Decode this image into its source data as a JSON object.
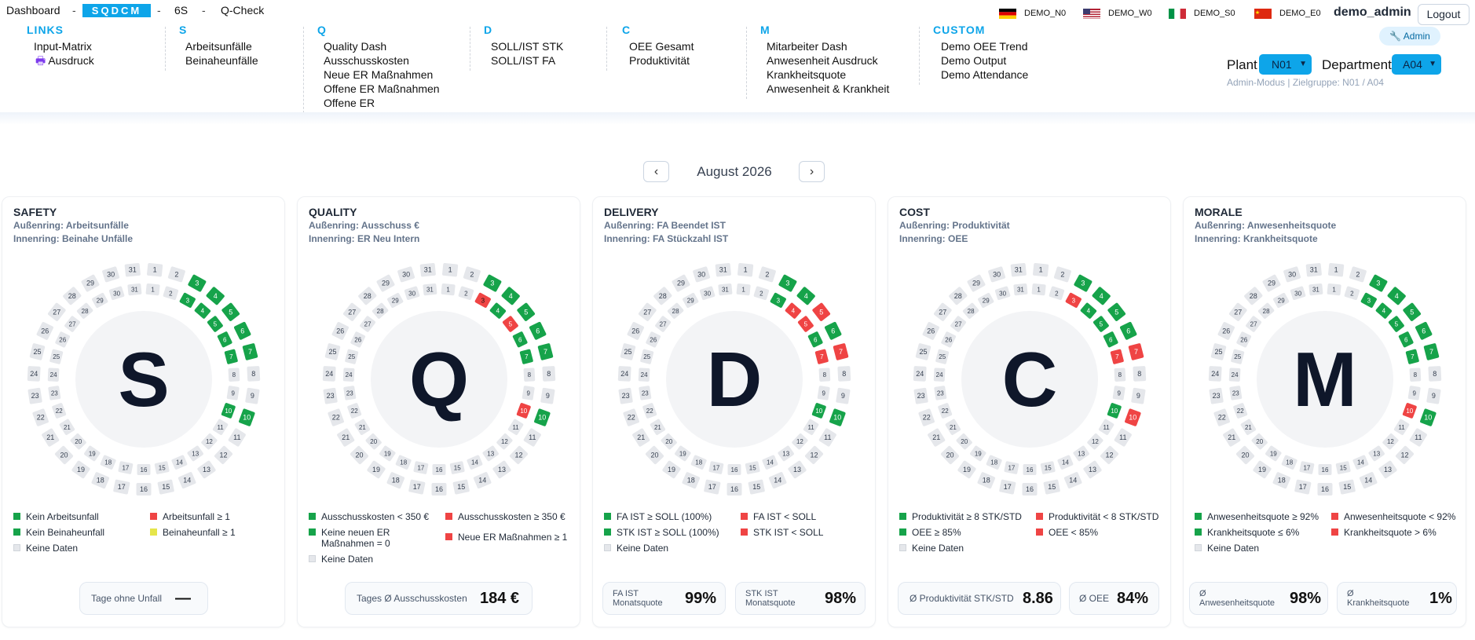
{
  "topnav": {
    "dashboard": "Dashboard",
    "sep1": "-",
    "sqdcm": "SQDCM",
    "sep2": "-",
    "six_s": "6S",
    "sep3": "-",
    "qcheck": "Q-Check"
  },
  "flags": [
    {
      "label": "DEMO_N0",
      "border": "#cbd5e1"
    },
    {
      "label": "DEMO_W0",
      "border": "#1e40af"
    },
    {
      "label": "DEMO_S0",
      "border": "#16a34a"
    },
    {
      "label": "DEMO_E0",
      "border": "#dc2626"
    }
  ],
  "user": "demo_admin",
  "logout": "Logout",
  "admin_pill": "Admin",
  "menu": [
    {
      "head": "LINKS",
      "items": [
        "Input-Matrix",
        "Ausdruck"
      ]
    },
    {
      "head": "S",
      "items": [
        "Arbeitsunfälle",
        "Beinaheunfälle"
      ]
    },
    {
      "head": "Q",
      "items": [
        "Quality Dash",
        "Ausschusskosten",
        "Neue ER Maßnahmen",
        "Offene ER Maßnahmen",
        "Offene ER"
      ]
    },
    {
      "head": "D",
      "items": [
        "SOLL/IST STK",
        "SOLL/IST FA"
      ]
    },
    {
      "head": "C",
      "items": [
        "OEE Gesamt",
        "Produktivität"
      ]
    },
    {
      "head": "M",
      "items": [
        "Mitarbeiter Dash",
        "Anwesenheit Ausdruck",
        "Krankheitsquote",
        "Anwesenheit & Krankheit"
      ]
    },
    {
      "head": "CUSTOM",
      "items": [
        "Demo OEE Trend",
        "Demo Output",
        "Demo Attendance"
      ]
    }
  ],
  "filters": {
    "plant_label": "Plant",
    "plant_value": "N01",
    "dept_label": "Department",
    "dept_value": "A04",
    "admin_mode": "Admin-Modus | Zielgruppe: N01 / A04"
  },
  "month_nav": {
    "prev": "‹",
    "month": "August 2026",
    "next": "›"
  },
  "colors": {
    "green": "#16a34a",
    "red": "#ef4444",
    "yellow": "#e5e54a",
    "grey": "#e5e7eb",
    "accent": "#0ea5e9"
  },
  "cards": [
    {
      "title": "SAFETY",
      "outer": "Außenring: Arbeitsunfälle",
      "inner": "Innenring: Beinahe Unfälle",
      "letter": "S",
      "outer_green": [
        3,
        4,
        5,
        6,
        7,
        10
      ],
      "outer_red": [],
      "inner_green": [
        3,
        4,
        5,
        6,
        7,
        10
      ],
      "inner_red": [],
      "legend": [
        {
          "t": "Kein Arbeitsunfall",
          "c": "green"
        },
        {
          "t": "Arbeitsunfall ≥ 1",
          "c": "red"
        },
        {
          "t": "Kein Beinaheunfall",
          "c": "green"
        },
        {
          "t": "Beinaheunfall ≥ 1",
          "c": "yellow"
        },
        {
          "t": "Keine Daten",
          "c": "grey"
        }
      ],
      "stats": [
        {
          "label": "Tage ohne Unfall",
          "value": "—"
        }
      ]
    },
    {
      "title": "QUALITY",
      "outer": "Außenring: Ausschuss €",
      "inner": "Innenring: ER Neu Intern",
      "letter": "Q",
      "outer_green": [
        3,
        4,
        5,
        6,
        7,
        10
      ],
      "outer_red": [],
      "inner_green": [
        4,
        6,
        7
      ],
      "inner_red": [
        3,
        5,
        10
      ],
      "legend": [
        {
          "t": "Ausschusskosten < 350 €",
          "c": "green"
        },
        {
          "t": "Ausschusskosten ≥ 350 €",
          "c": "red"
        },
        {
          "t": "Keine neuen ER Maßnahmen = 0",
          "c": "green"
        },
        {
          "t": "Neue ER Maßnahmen ≥ 1",
          "c": "red"
        },
        {
          "t": "Keine Daten",
          "c": "grey"
        }
      ],
      "stats": [
        {
          "label": "Tages Ø Ausschusskosten",
          "value": "184 €"
        }
      ]
    },
    {
      "title": "DELIVERY",
      "outer": "Außenring: FA Beendet IST",
      "inner": "Innenring: FA Stückzahl IST",
      "letter": "D",
      "outer_green": [
        3,
        4,
        6,
        10
      ],
      "outer_red": [
        5,
        7
      ],
      "inner_green": [
        3,
        6,
        10
      ],
      "inner_red": [
        4,
        5,
        7
      ],
      "legend": [
        {
          "t": "FA IST ≥ SOLL (100%)",
          "c": "green"
        },
        {
          "t": "FA IST < SOLL",
          "c": "red"
        },
        {
          "t": "STK IST ≥ SOLL (100%)",
          "c": "green"
        },
        {
          "t": "STK IST < SOLL",
          "c": "red"
        },
        {
          "t": "Keine Daten",
          "c": "grey"
        }
      ],
      "stats": [
        {
          "label": "FA IST",
          "label2": "Monatsquote",
          "value": "99%"
        },
        {
          "label": "STK IST",
          "label2": "Monatsquote",
          "value": "98%"
        }
      ]
    },
    {
      "title": "COST",
      "outer": "Außenring: Produktivität",
      "inner": "Innenring: OEE",
      "letter": "C",
      "outer_green": [
        3,
        4,
        5,
        6
      ],
      "outer_red": [
        7,
        10
      ],
      "inner_green": [
        4,
        5,
        6,
        10
      ],
      "inner_red": [
        3,
        7
      ],
      "legend": [
        {
          "t": "Produktivität ≥ 8 STK/STD",
          "c": "green"
        },
        {
          "t": "Produktivität < 8 STK/STD",
          "c": "red"
        },
        {
          "t": "OEE ≥ 85%",
          "c": "green"
        },
        {
          "t": "OEE < 85%",
          "c": "red"
        },
        {
          "t": "Keine Daten",
          "c": "grey"
        }
      ],
      "stats": [
        {
          "label": "Ø Produktivität STK/STD",
          "value": "8.86"
        },
        {
          "label": "Ø OEE",
          "value": "84%"
        }
      ]
    },
    {
      "title": "MORALE",
      "outer": "Außenring: Anwesenheitsquote",
      "inner": "Innenring: Krankheitsquote",
      "letter": "M",
      "outer_green": [
        3,
        4,
        5,
        6,
        7,
        10
      ],
      "outer_red": [],
      "inner_green": [
        3,
        4,
        5,
        6,
        7
      ],
      "inner_red": [
        10
      ],
      "legend": [
        {
          "t": "Anwesenheitsquote ≥ 92%",
          "c": "green"
        },
        {
          "t": "Anwesenheitsquote < 92%",
          "c": "red"
        },
        {
          "t": "Krankheitsquote ≤ 6%",
          "c": "green"
        },
        {
          "t": "Krankheitsquote > 6%",
          "c": "red"
        },
        {
          "t": "Keine Daten",
          "c": "grey"
        }
      ],
      "stats": [
        {
          "label": "Ø",
          "label2": "Anwesenheitsquote",
          "value": "98%"
        },
        {
          "label": "Ø",
          "label2": "Krankheitsquote",
          "value": "1%"
        }
      ]
    }
  ]
}
